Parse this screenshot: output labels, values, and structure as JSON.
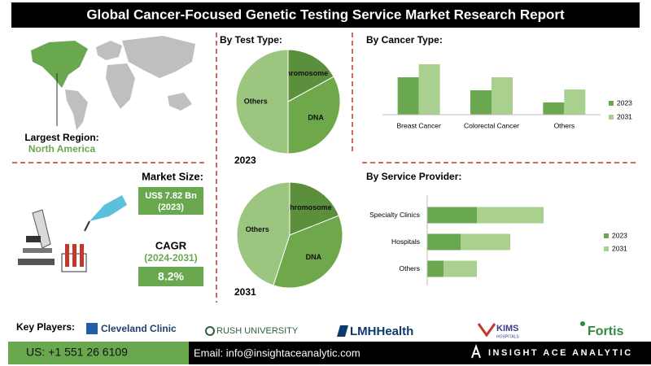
{
  "header": {
    "title": "Global Cancer-Focused Genetic Testing Service Market Research Report"
  },
  "region": {
    "label": "Largest Region:",
    "value": "North America"
  },
  "market_size": {
    "label": "Market Size:",
    "value": "US$ 7.82 Bn",
    "year": "(2023)"
  },
  "cagr": {
    "label": "CAGR",
    "period": "(2024-2031)",
    "value": "8.2%"
  },
  "key_players": {
    "label": "Key Players:",
    "names": [
      "Cleveland Clinic",
      "RUSH UNIVERSITY",
      "LMHHealth",
      "KIMS",
      "HOSPITALS",
      "Fortis"
    ]
  },
  "footer": {
    "phone": "US: +1 551 26 6109",
    "email": "Email: info@insightaceanalytic.com",
    "brand": "INSIGHT ACE ANALYTIC"
  },
  "chart_data": [
    {
      "type": "pie",
      "title": "By Test Type:",
      "subtitle": "2023",
      "categories": [
        "Chromosome",
        "DNA",
        "Others"
      ],
      "values": [
        17,
        33,
        50
      ],
      "colors": [
        "#5b8f3c",
        "#6fa84a",
        "#9cc67f"
      ]
    },
    {
      "type": "pie",
      "subtitle": "2031",
      "categories": [
        "Chromosome",
        "DNA",
        "Others"
      ],
      "values": [
        19,
        36,
        45
      ],
      "colors": [
        "#5b8f3c",
        "#6fa84a",
        "#9cc67f"
      ]
    },
    {
      "type": "bar",
      "title": "By  Cancer Type:",
      "categories": [
        "Breast Cancer",
        "Colorectal Cancer",
        "Others"
      ],
      "series": [
        {
          "name": "2023",
          "color": "#6aa84f",
          "values": [
            46,
            30,
            15
          ]
        },
        {
          "name": "2031",
          "color": "#a9d08e",
          "values": [
            62,
            46,
            31
          ]
        }
      ],
      "legend": "right"
    },
    {
      "type": "hbar",
      "title": "By Service Provider:",
      "stacked": true,
      "categories": [
        "Specialty Clinics",
        "Hospitals",
        "Others"
      ],
      "series": [
        {
          "name": "2023",
          "color": "#6aa84f",
          "values": [
            61,
            41,
            20
          ]
        },
        {
          "name": "2031",
          "color": "#a9d08e",
          "values": [
            82,
            61,
            41
          ]
        }
      ],
      "legend": "right"
    }
  ]
}
